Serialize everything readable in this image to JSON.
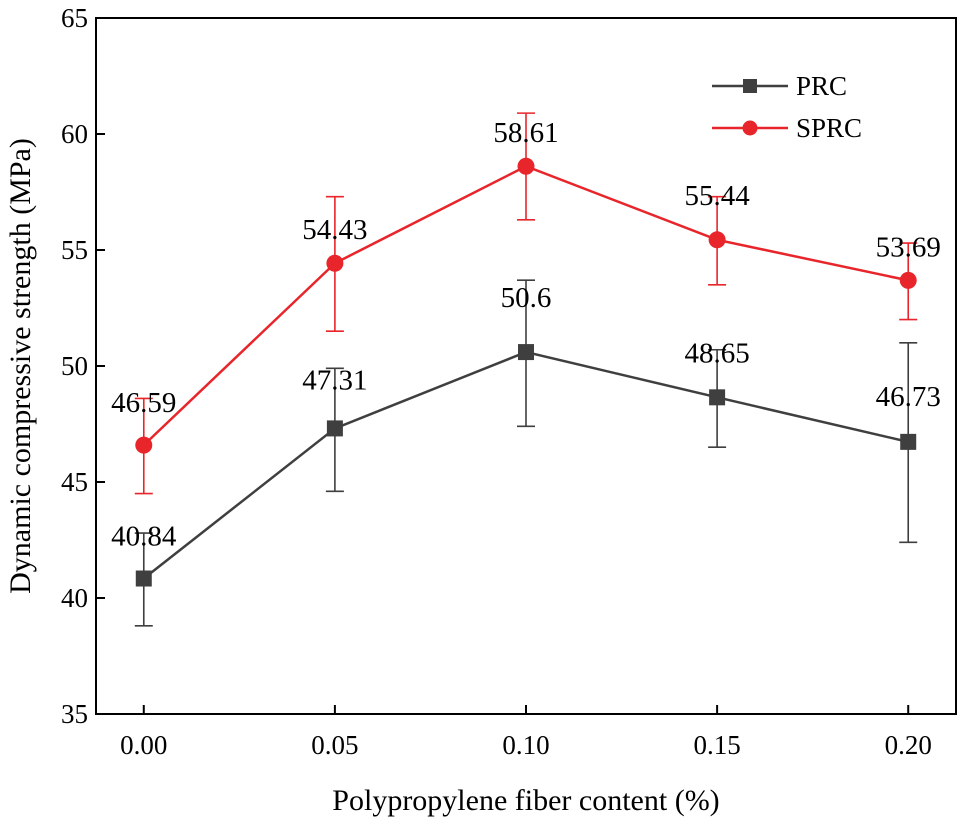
{
  "chart_data": {
    "type": "line",
    "title": "",
    "xlabel": "Polypropylene fiber content (%)",
    "ylabel": "Dynamic compressive strength (MPa)",
    "categories": [
      "0.00",
      "0.05",
      "0.10",
      "0.15",
      "0.20"
    ],
    "x": [
      0.0,
      0.05,
      0.1,
      0.15,
      0.2
    ],
    "xlim": [
      -0.0125,
      0.2125
    ],
    "ylim": [
      35,
      65
    ],
    "yticks": [
      35,
      40,
      45,
      50,
      55,
      60,
      65
    ],
    "yticklabels": [
      "35",
      "40",
      "45",
      "50",
      "55",
      "60",
      "65"
    ],
    "grid": false,
    "legend": {
      "position": "top-right"
    },
    "series": [
      {
        "name": "PRC",
        "color": "#3f3f3f",
        "marker": "square",
        "values": [
          40.84,
          47.31,
          50.6,
          48.65,
          46.73
        ],
        "labels": [
          "40.84",
          "47.31",
          "50.6",
          "48.65",
          "46.73"
        ],
        "error_low": [
          38.8,
          44.6,
          47.4,
          46.5,
          42.4
        ],
        "error_high": [
          42.8,
          49.9,
          53.7,
          50.7,
          51.0
        ]
      },
      {
        "name": "SPRC",
        "color": "#e8252a",
        "marker": "circle",
        "values": [
          46.59,
          54.43,
          58.61,
          55.44,
          53.69
        ],
        "labels": [
          "46.59",
          "54.43",
          "58.61",
          "55.44",
          "53.69"
        ],
        "error_low": [
          44.5,
          51.5,
          56.3,
          53.5,
          52.0
        ],
        "error_high": [
          48.6,
          57.3,
          60.9,
          57.3,
          55.3
        ]
      }
    ]
  }
}
